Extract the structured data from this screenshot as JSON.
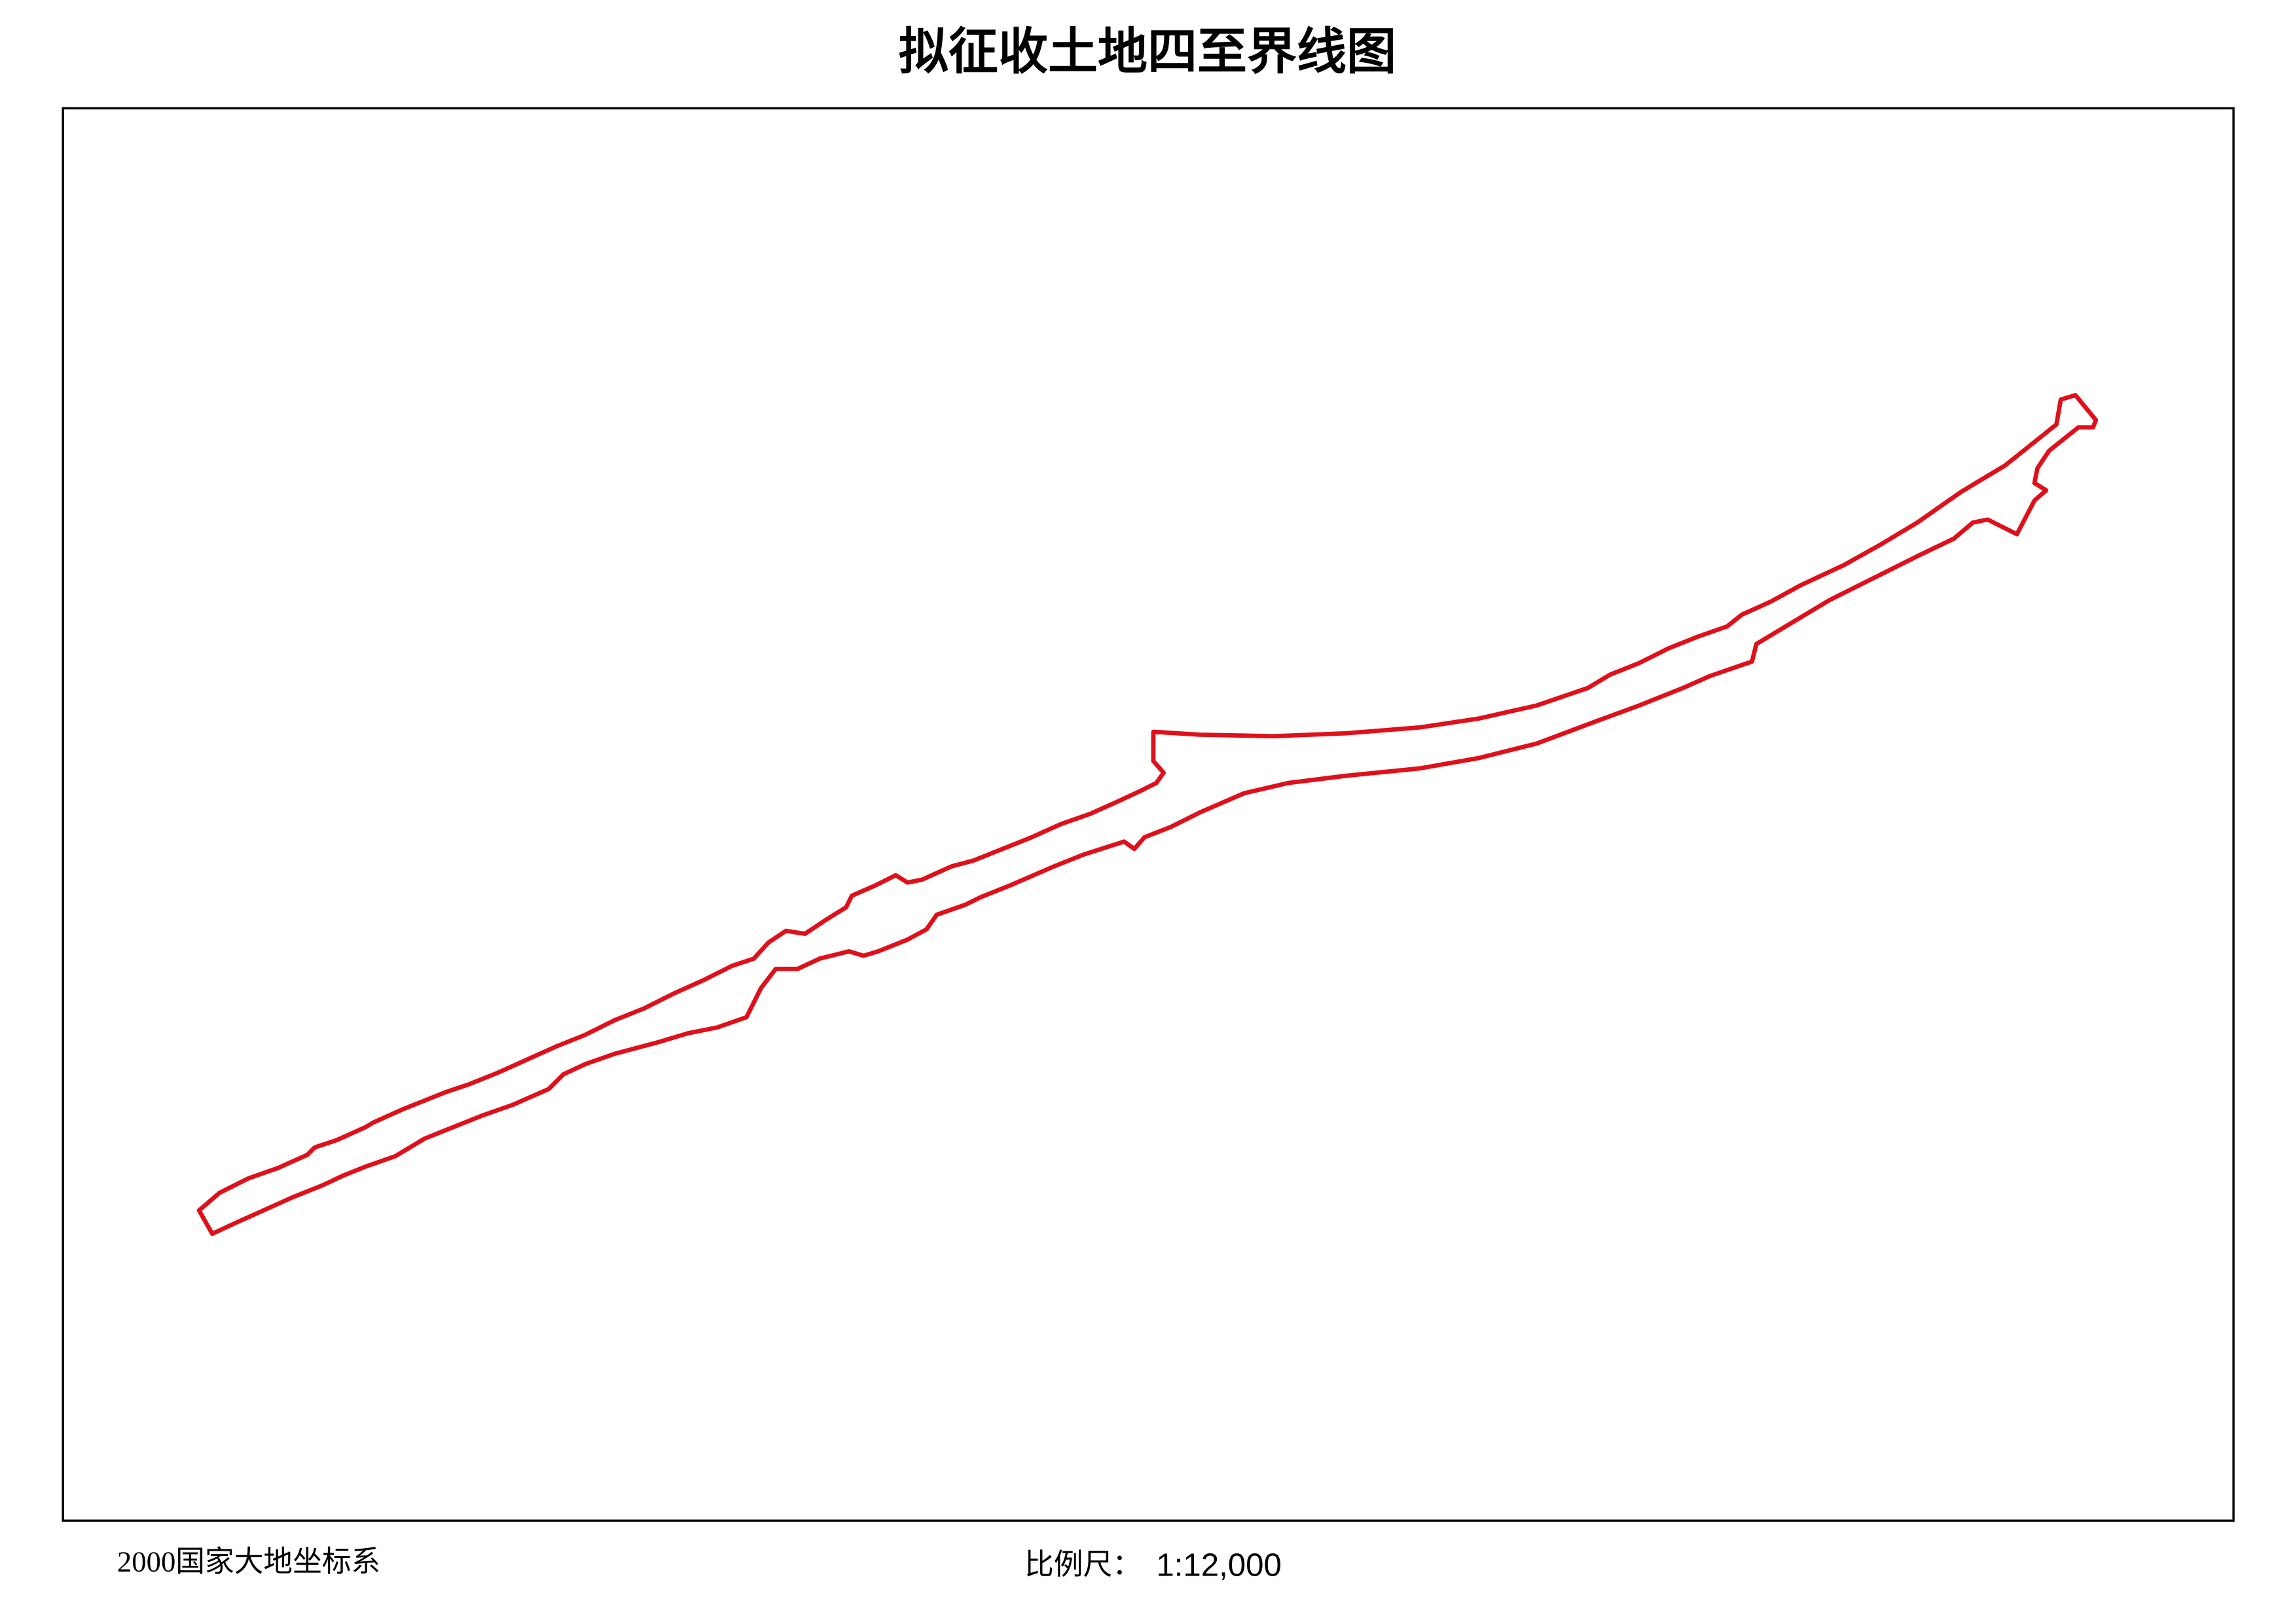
{
  "header": {
    "title": "拟征收土地四至界线图"
  },
  "footer": {
    "coordinate_system": "2000国家大地坐标系",
    "scale_label": "比例尺：",
    "scale": "1:12,000"
  }
}
